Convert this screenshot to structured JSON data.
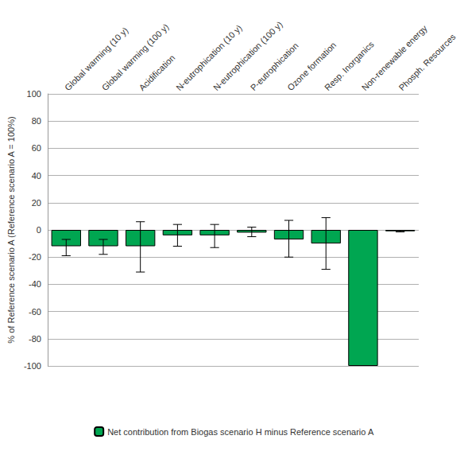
{
  "chart_data": {
    "type": "bar",
    "y_label": "% of Reference scenario A (Reference scenario A = 100%)",
    "categories": [
      "Global warming (10 y)",
      "Global warming (100 y)",
      "Acidification",
      "N-eutrophication (10 y)",
      "N-eutrophication (100 y)",
      "P-eutrophication",
      "Ozone formation",
      "Resp. Inorganics",
      "Non-renewable energy",
      "Phosph. Resources"
    ],
    "series": [
      {
        "name": "Net contribution from Biogas scenario H minus Reference scenario A",
        "color": "#00a651",
        "values": [
          -12,
          -12,
          -12,
          -4,
          -4,
          -2,
          -7,
          -10,
          -100,
          -1
        ],
        "error_low": [
          -19,
          -18,
          -31,
          -12,
          -13,
          -5,
          -20,
          -29,
          null,
          -1.5
        ],
        "error_high": [
          -7,
          -7,
          6,
          4,
          4,
          2,
          7,
          9,
          null,
          -0.5
        ]
      }
    ],
    "ylim": [
      -100,
      100
    ],
    "yticks": [
      -100,
      -80,
      -60,
      -40,
      -20,
      0,
      20,
      40,
      60,
      80,
      100
    ],
    "grid": true,
    "legend": "bottom"
  }
}
